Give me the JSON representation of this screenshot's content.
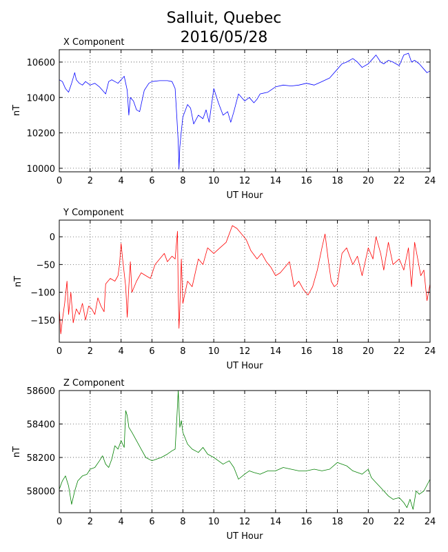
{
  "title_lines": [
    "Salluit, Quebec",
    "2016/05/28"
  ],
  "chart_data": [
    {
      "type": "line",
      "title": "X Component",
      "xlabel": "UT Hour",
      "ylabel": "nT",
      "xlim": [
        0,
        24
      ],
      "ylim": [
        9980,
        10670
      ],
      "xticks": [
        0,
        2,
        4,
        6,
        8,
        10,
        12,
        14,
        16,
        18,
        20,
        22,
        24
      ],
      "yticks": [
        10000,
        10200,
        10400,
        10600
      ],
      "grid": true,
      "series": [
        {
          "color": "#0000ff",
          "x": [
            0,
            0.2,
            0.4,
            0.6,
            0.8,
            1.0,
            1.1,
            1.3,
            1.5,
            1.7,
            2.0,
            2.3,
            2.6,
            2.8,
            3.0,
            3.2,
            3.4,
            3.6,
            3.8,
            4.0,
            4.2,
            4.4,
            4.5,
            4.6,
            4.8,
            5.0,
            5.2,
            5.5,
            5.8,
            6.0,
            6.5,
            7.0,
            7.3,
            7.5,
            7.6,
            7.7,
            7.75,
            7.8,
            7.9,
            8.0,
            8.3,
            8.5,
            8.7,
            9.0,
            9.3,
            9.5,
            9.7,
            10.0,
            10.3,
            10.6,
            10.9,
            11.1,
            11.3,
            11.6,
            12.0,
            12.3,
            12.6,
            12.8,
            13.0,
            13.5,
            14.0,
            14.5,
            15.0,
            15.5,
            16.0,
            16.5,
            17.0,
            17.5,
            18.0,
            18.3,
            18.6,
            19.0,
            19.3,
            19.6,
            20.0,
            20.3,
            20.5,
            20.8,
            21.0,
            21.3,
            21.6,
            22.0,
            22.3,
            22.6,
            22.8,
            23.0,
            23.3,
            23.6,
            23.8,
            24.0
          ],
          "y": [
            10500,
            10490,
            10450,
            10430,
            10480,
            10540,
            10500,
            10480,
            10470,
            10490,
            10470,
            10480,
            10460,
            10440,
            10420,
            10490,
            10500,
            10490,
            10480,
            10500,
            10520,
            10440,
            10300,
            10400,
            10380,
            10330,
            10320,
            10440,
            10480,
            10490,
            10495,
            10495,
            10490,
            10450,
            10300,
            10150,
            9995,
            10120,
            10210,
            10290,
            10360,
            10340,
            10250,
            10300,
            10280,
            10330,
            10260,
            10450,
            10370,
            10300,
            10320,
            10260,
            10320,
            10420,
            10380,
            10400,
            10370,
            10390,
            10420,
            10430,
            10460,
            10470,
            10465,
            10470,
            10480,
            10470,
            10490,
            10510,
            10560,
            10590,
            10600,
            10620,
            10600,
            10570,
            10590,
            10620,
            10640,
            10600,
            10590,
            10610,
            10600,
            10580,
            10640,
            10650,
            10600,
            10610,
            10590,
            10560,
            10540,
            10550
          ]
        }
      ]
    },
    {
      "type": "line",
      "title": "Y Component",
      "xlabel": "UT Hour",
      "ylabel": "nT",
      "xlim": [
        0,
        24
      ],
      "ylim": [
        -190,
        30
      ],
      "xticks": [
        0,
        2,
        4,
        6,
        8,
        10,
        12,
        14,
        16,
        18,
        20,
        22,
        24
      ],
      "yticks": [
        0,
        -50,
        -100,
        -150
      ],
      "grid": true,
      "series": [
        {
          "color": "#ff0000",
          "x": [
            0,
            0.1,
            0.2,
            0.35,
            0.5,
            0.6,
            0.75,
            0.9,
            1.1,
            1.3,
            1.5,
            1.7,
            1.9,
            2.1,
            2.3,
            2.5,
            2.7,
            2.9,
            3.0,
            3.3,
            3.6,
            3.8,
            3.9,
            4.0,
            4.1,
            4.3,
            4.4,
            4.5,
            4.6,
            4.7,
            5.0,
            5.3,
            5.6,
            5.9,
            6.2,
            6.5,
            6.8,
            7.0,
            7.3,
            7.5,
            7.65,
            7.7,
            7.75,
            7.8,
            7.9,
            8.0,
            8.3,
            8.6,
            9.0,
            9.3,
            9.6,
            10.0,
            10.4,
            10.8,
            11.2,
            11.5,
            11.8,
            12.1,
            12.4,
            12.8,
            13.1,
            13.4,
            13.7,
            14.0,
            14.3,
            14.6,
            14.9,
            15.2,
            15.5,
            15.8,
            16.1,
            16.4,
            16.7,
            17.0,
            17.2,
            17.4,
            17.6,
            17.8,
            18.0,
            18.3,
            18.6,
            19.0,
            19.3,
            19.6,
            20.0,
            20.3,
            20.5,
            20.8,
            21.0,
            21.3,
            21.6,
            22.0,
            22.3,
            22.6,
            22.8,
            23.0,
            23.2,
            23.4,
            23.6,
            23.8,
            24.0
          ],
          "y": [
            -130,
            -175,
            -150,
            -120,
            -80,
            -140,
            -100,
            -155,
            -130,
            -140,
            -120,
            -150,
            -125,
            -130,
            -140,
            -110,
            -125,
            -135,
            -85,
            -75,
            -80,
            -70,
            -50,
            -12,
            -40,
            -90,
            -145,
            -90,
            -45,
            -100,
            -80,
            -65,
            -70,
            -75,
            -50,
            -40,
            -30,
            -45,
            -35,
            -40,
            10,
            -100,
            -165,
            -130,
            -40,
            -120,
            -80,
            -90,
            -40,
            -50,
            -20,
            -30,
            -20,
            -10,
            20,
            15,
            5,
            -5,
            -25,
            -40,
            -30,
            -45,
            -55,
            -70,
            -65,
            -55,
            -45,
            -90,
            -80,
            -95,
            -105,
            -90,
            -60,
            -20,
            5,
            -40,
            -80,
            -90,
            -85,
            -30,
            -20,
            -50,
            -35,
            -70,
            -20,
            -40,
            0,
            -30,
            -60,
            -10,
            -50,
            -40,
            -60,
            -20,
            -90,
            -10,
            -40,
            -70,
            -60,
            -115,
            -85
          ]
        }
      ]
    },
    {
      "type": "line",
      "title": "Z Component",
      "xlabel": "UT Hour",
      "ylabel": "nT",
      "xlim": [
        0,
        24
      ],
      "ylim": [
        57870,
        58600
      ],
      "xticks": [
        0,
        2,
        4,
        6,
        8,
        10,
        12,
        14,
        16,
        18,
        20,
        22,
        24
      ],
      "yticks": [
        58000,
        58200,
        58400,
        58600
      ],
      "grid": true,
      "series": [
        {
          "color": "#008000",
          "x": [
            0,
            0.2,
            0.4,
            0.6,
            0.8,
            1.0,
            1.2,
            1.5,
            1.8,
            2.0,
            2.3,
            2.6,
            2.8,
            3.0,
            3.2,
            3.4,
            3.6,
            3.8,
            4.0,
            4.2,
            4.3,
            4.4,
            4.5,
            4.7,
            5.0,
            5.3,
            5.6,
            6.0,
            6.3,
            6.6,
            7.0,
            7.3,
            7.5,
            7.6,
            7.7,
            7.8,
            7.9,
            8.0,
            8.3,
            8.6,
            9.0,
            9.3,
            9.6,
            10.0,
            10.3,
            10.6,
            11.0,
            11.3,
            11.6,
            12.0,
            12.3,
            12.6,
            13.0,
            13.5,
            14.0,
            14.5,
            15.0,
            15.5,
            16.0,
            16.5,
            17.0,
            17.5,
            18.0,
            18.3,
            18.6,
            19.0,
            19.3,
            19.6,
            20.0,
            20.2,
            20.5,
            20.8,
            21.0,
            21.3,
            21.6,
            22.0,
            22.3,
            22.5,
            22.7,
            22.9,
            23.1,
            23.3,
            23.6,
            24.0
          ],
          "y": [
            58010,
            58060,
            58090,
            58030,
            57920,
            58000,
            58060,
            58090,
            58100,
            58130,
            58140,
            58180,
            58210,
            58160,
            58140,
            58190,
            58270,
            58250,
            58300,
            58260,
            58480,
            58450,
            58380,
            58350,
            58300,
            58250,
            58200,
            58180,
            58190,
            58200,
            58220,
            58240,
            58250,
            58420,
            58600,
            58380,
            58420,
            58350,
            58280,
            58250,
            58230,
            58260,
            58220,
            58200,
            58180,
            58160,
            58180,
            58140,
            58070,
            58100,
            58120,
            58110,
            58100,
            58120,
            58120,
            58140,
            58130,
            58120,
            58120,
            58130,
            58120,
            58130,
            58170,
            58160,
            58150,
            58120,
            58110,
            58100,
            58130,
            58080,
            58050,
            58020,
            58000,
            57970,
            57950,
            57960,
            57930,
            57900,
            57950,
            57890,
            58000,
            57980,
            58000,
            58070
          ]
        }
      ]
    }
  ]
}
